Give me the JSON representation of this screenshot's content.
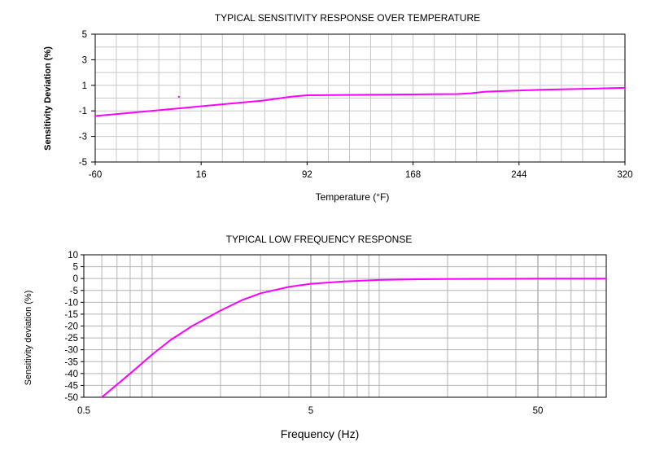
{
  "chart_data": [
    {
      "type": "line",
      "title": "TYPICAL SENSITIVITY RESPONSE OVER TEMPERATURE",
      "xlabel": "Temperature (°F)",
      "ylabel": "Sensitivity Deviation (%)",
      "xlim": [
        -60,
        320
      ],
      "ylim": [
        -5,
        5
      ],
      "x_ticks": [
        -60,
        16,
        92,
        168,
        244,
        320
      ],
      "x_tick_labels": [
        "-60",
        "16",
        "92",
        "168",
        "244",
        "320"
      ],
      "y_ticks": [
        5,
        3,
        1,
        -1,
        -3,
        -5
      ],
      "y_tick_labels": [
        "5",
        "3",
        "1",
        "-1",
        "-3",
        "-5"
      ],
      "grid": true,
      "line_color": "#ff00ff",
      "series": [
        {
          "name": "Sensitivity deviation",
          "x": [
            -60,
            -20,
            0,
            20,
            40,
            60,
            80,
            92,
            120,
            150,
            180,
            200,
            210,
            220,
            240,
            260,
            280,
            300,
            320
          ],
          "y": [
            -1.4,
            -1.0,
            -0.8,
            -0.6,
            -0.4,
            -0.2,
            0.1,
            0.22,
            0.25,
            0.27,
            0.3,
            0.32,
            0.38,
            0.5,
            0.58,
            0.65,
            0.7,
            0.75,
            0.8
          ]
        }
      ],
      "annotations": [
        {
          "x": 0,
          "y": 0.1
        }
      ]
    },
    {
      "type": "line",
      "title": "TYPICAL LOW FREQUENCY RESPONSE",
      "xlabel": "Frequency (Hz)",
      "ylabel": "Sensitivity deviation (%)",
      "xscale": "log",
      "xlim": [
        0.5,
        100
      ],
      "ylim": [
        -50,
        10
      ],
      "x_ticks": [
        0.5,
        5,
        50
      ],
      "x_tick_labels": [
        "0.5",
        "5",
        "50"
      ],
      "y_ticks": [
        10,
        5,
        0,
        -5,
        -10,
        -15,
        -20,
        -25,
        -30,
        -35,
        -40,
        -45,
        -50
      ],
      "y_tick_labels": [
        "10",
        "5",
        "0",
        "-5",
        "-10",
        "-15",
        "-20",
        "-25",
        "-30",
        "-35",
        "-40",
        "-45",
        "-50"
      ],
      "grid": true,
      "line_color": "#ff00ff",
      "series": [
        {
          "name": "Low frequency response",
          "x": [
            0.6,
            0.8,
            1.0,
            1.2,
            1.5,
            2.0,
            2.5,
            3.0,
            4.0,
            5.0,
            7.0,
            10,
            15,
            20,
            30,
            50,
            100
          ],
          "y": [
            -50,
            -40,
            -32,
            -26,
            -20,
            -13.5,
            -9,
            -6.2,
            -3.5,
            -2.2,
            -1.2,
            -0.6,
            -0.3,
            -0.2,
            -0.1,
            -0.05,
            0
          ]
        }
      ]
    }
  ]
}
